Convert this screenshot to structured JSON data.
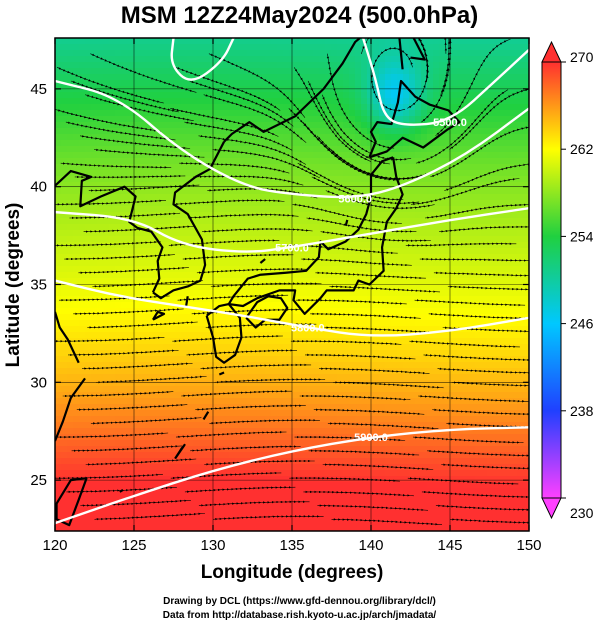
{
  "title": "MSM 12Z24May2024 (500.0hPa)",
  "footer": {
    "line1": "Drawing by DCL (https://www.gfd-dennou.org/library/dcl/)",
    "line2": "Data from http://database.rish.kyoto-u.ac.jp/arch/jmadata/"
  },
  "chart_data": {
    "type": "heatmap",
    "title": "MSM 12Z24May2024 (500.0hPa)",
    "xlabel": "Longitude (degrees)",
    "ylabel": "Latitude  (degrees)",
    "xlim": [
      120,
      150
    ],
    "ylim": [
      22.4,
      47.6
    ],
    "x_ticks": [
      120,
      125,
      130,
      135,
      140,
      145,
      150
    ],
    "y_ticks": [
      25,
      30,
      35,
      40,
      45
    ],
    "colorbar": {
      "min": 230,
      "max": 270,
      "ticks": [
        230,
        238,
        246,
        254,
        262,
        270
      ],
      "colors": [
        "#ff40ff",
        "#2040ff",
        "#00c8ff",
        "#20d040",
        "#ffff00",
        "#ff3030"
      ]
    },
    "contours": [
      {
        "label": "5900.0",
        "points": [
          [
            120,
            22.8
          ],
          [
            125,
            24.2
          ],
          [
            130,
            25.5
          ],
          [
            135,
            26.5
          ],
          [
            140,
            27.2
          ],
          [
            145,
            27.6
          ],
          [
            150,
            27.7
          ]
        ]
      },
      {
        "label": "5800.0",
        "points": [
          [
            120,
            35.2
          ],
          [
            124,
            34.4
          ],
          [
            128,
            33.9
          ],
          [
            132,
            33.4
          ],
          [
            136,
            32.8
          ],
          [
            140,
            32.3
          ],
          [
            145,
            32.6
          ],
          [
            150,
            33.3
          ]
        ]
      },
      {
        "label": "5700.0",
        "points": [
          [
            120,
            38.7
          ],
          [
            125,
            38.4
          ],
          [
            128,
            37.0
          ],
          [
            132,
            36.6
          ],
          [
            135,
            36.9
          ],
          [
            140,
            37.6
          ],
          [
            145,
            38.3
          ],
          [
            150,
            38.9
          ]
        ]
      },
      {
        "label": "5600.0",
        "points": [
          [
            120,
            45.4
          ],
          [
            124,
            44.6
          ],
          [
            128,
            41.8
          ],
          [
            132,
            40.0
          ],
          [
            135,
            39.6
          ],
          [
            139,
            39.4
          ],
          [
            142,
            40.0
          ],
          [
            146,
            41.6
          ],
          [
            150,
            44.0
          ]
        ]
      },
      {
        "label": "5500.0",
        "points": [
          [
            139.5,
            47.6
          ],
          [
            140.3,
            45.5
          ],
          [
            140.8,
            43.6
          ],
          [
            142,
            43.1
          ],
          [
            145,
            43.3
          ],
          [
            148,
            45.5
          ],
          [
            150,
            47.0
          ]
        ]
      },
      {
        "label": "",
        "points": [
          [
            127.5,
            47.6
          ],
          [
            127.3,
            46.2
          ],
          [
            128.6,
            45.2
          ],
          [
            130.6,
            46.4
          ],
          [
            131.3,
            47.6
          ]
        ]
      }
    ],
    "low_center": {
      "lon": 141.5,
      "lat": 44.6,
      "value_min": 250
    }
  }
}
